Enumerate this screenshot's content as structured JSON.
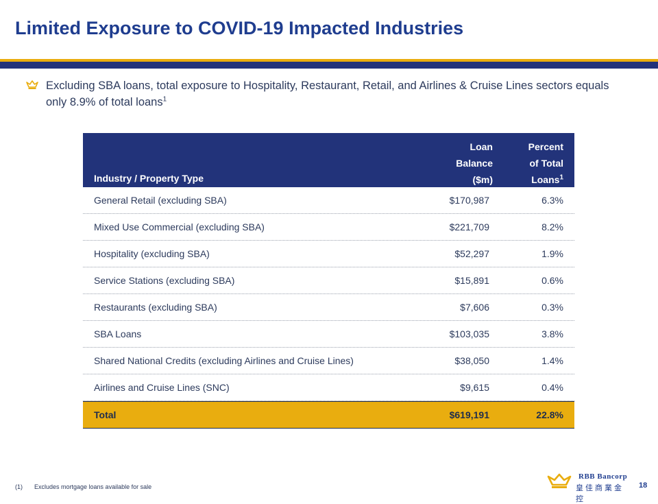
{
  "title": "Limited Exposure to COVID-19 Impacted Industries",
  "bullet": {
    "text": "Excluding SBA loans, total exposure to Hospitality, Restaurant, Retail, and Airlines & Cruise Lines sectors equals only 8.9% of total loans",
    "sup": "1",
    "icon": "crown-icon"
  },
  "table": {
    "header": {
      "industry": "Industry / Property Type",
      "loan_l1": "Loan",
      "loan_l2": "Balance",
      "loan_l3": "($m)",
      "pct_l1": "Percent",
      "pct_l2": "of Total",
      "pct_l3": "Loans",
      "pct_sup": "1"
    },
    "rows": [
      {
        "industry": "General Retail (excluding SBA)",
        "balance": "$170,987",
        "percent": "6.3%"
      },
      {
        "industry": "Mixed Use Commercial (excluding SBA)",
        "balance": "$221,709",
        "percent": "8.2%"
      },
      {
        "industry": "Hospitality (excluding SBA)",
        "balance": "$52,297",
        "percent": "1.9%"
      },
      {
        "industry": "Service Stations (excluding SBA)",
        "balance": "$15,891",
        "percent": "0.6%"
      },
      {
        "industry": "Restaurants (excluding SBA)",
        "balance": "$7,606",
        "percent": "0.3%"
      },
      {
        "industry": "SBA Loans",
        "balance": "$103,035",
        "percent": "3.8%"
      },
      {
        "industry": "Shared National Credits (excluding Airlines and Cruise Lines)",
        "balance": "$38,050",
        "percent": "1.4%"
      },
      {
        "industry": "Airlines and Cruise Lines (SNC)",
        "balance": "$9,615",
        "percent": "0.4%"
      }
    ],
    "total": {
      "industry": "Total",
      "balance": "$619,191",
      "percent": "22.8%"
    }
  },
  "footnote": {
    "num": "(1)",
    "text": "Excludes mortgage loans available for sale"
  },
  "logo": {
    "name": "RBB Bancorp",
    "cn": "皇佳商業金控"
  },
  "page_number": "18",
  "colors": {
    "navy": "#22337a",
    "gold": "#e9ad0f",
    "title_blue": "#1f3d8f"
  }
}
